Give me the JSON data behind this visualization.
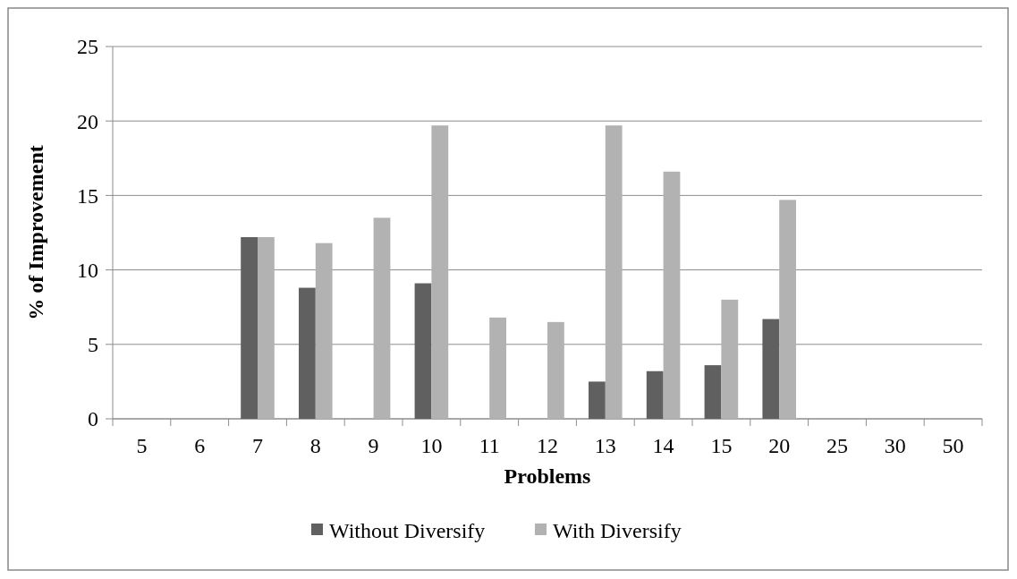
{
  "chart_data": {
    "type": "bar",
    "xlabel": "Problems",
    "ylabel": "% of Improvement",
    "categories": [
      "5",
      "6",
      "7",
      "8",
      "9",
      "10",
      "11",
      "12",
      "13",
      "14",
      "15",
      "20",
      "25",
      "30",
      "50"
    ],
    "series": [
      {
        "name": "Without Diversify",
        "color": "#606060",
        "values": [
          0,
          0,
          12.2,
          8.8,
          0,
          9.1,
          0,
          0,
          2.5,
          3.2,
          3.6,
          6.7,
          0,
          0,
          0
        ]
      },
      {
        "name": "With Diversify",
        "color": "#b2b2b2",
        "values": [
          0,
          0,
          12.2,
          11.8,
          13.5,
          19.7,
          6.8,
          6.5,
          19.7,
          16.6,
          8.0,
          14.7,
          0,
          0,
          0
        ]
      }
    ],
    "ylim": [
      0,
      25
    ],
    "yticks": [
      0,
      5,
      10,
      15,
      20,
      25
    ],
    "grid": "y",
    "legend": "bottom"
  }
}
